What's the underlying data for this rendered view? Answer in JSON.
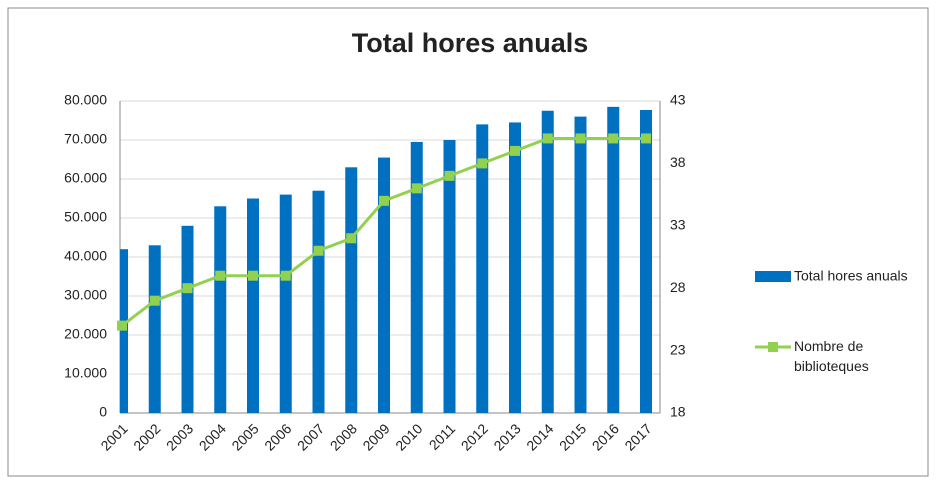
{
  "chart_data": {
    "type": "bar-line",
    "title": "Total hores anuals",
    "categories": [
      "2001",
      "2002",
      "2003",
      "2004",
      "2005",
      "2006",
      "2007",
      "2008",
      "2009",
      "2010",
      "2011",
      "2012",
      "2013",
      "2014",
      "2015",
      "2016",
      "2017"
    ],
    "series": [
      {
        "name": "Total hores anuals",
        "type": "bar",
        "color": "#0070c0",
        "values": [
          42000,
          43000,
          48000,
          53000,
          55000,
          56000,
          57000,
          63000,
          65500,
          69500,
          70000,
          74000,
          74500,
          77500,
          76000,
          78500,
          77700
        ]
      },
      {
        "name": "Nombre de biblioteques",
        "type": "line",
        "axis": "y2",
        "color": "#92d050",
        "values": [
          25,
          27,
          28,
          29,
          29,
          29,
          31,
          32,
          35,
          36,
          37,
          38,
          39,
          40,
          40,
          40,
          40
        ]
      }
    ],
    "ylim": [
      0,
      80000
    ],
    "yticks": [
      0,
      {
        "value": 10000,
        "label": "10.000"
      },
      {
        "value": 20000,
        "label": "20.000"
      },
      {
        "value": 30000,
        "label": "30.000"
      },
      {
        "value": 40000,
        "label": "40.000"
      },
      {
        "value": 50000,
        "label": "50.000"
      },
      {
        "value": 60000,
        "label": "60.000"
      },
      {
        "value": 70000,
        "label": "70.000"
      },
      {
        "value": 80000,
        "label": "80.000"
      }
    ],
    "y2lim": [
      18,
      43
    ],
    "y2ticks": [
      18,
      23,
      28,
      33,
      38,
      43
    ],
    "grid": true,
    "legend": "right"
  }
}
